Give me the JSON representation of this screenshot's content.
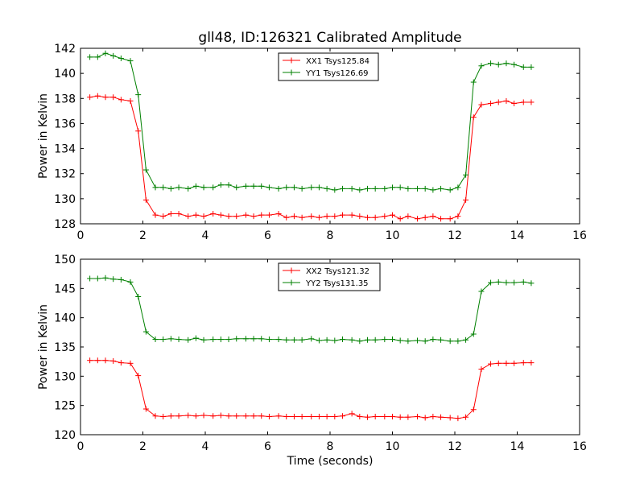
{
  "chart_data": [
    {
      "type": "line",
      "title": "gll48, ID:126321 Calibrated Amplitude",
      "xlabel": "",
      "ylabel": "Power in Kelvin",
      "xlim": [
        0,
        16
      ],
      "ylim": [
        128,
        142
      ],
      "xticks": [
        "0",
        "2",
        "4",
        "6",
        "8",
        "10",
        "12",
        "14",
        "16"
      ],
      "yticks": [
        "128",
        "130",
        "132",
        "134",
        "136",
        "138",
        "140",
        "142"
      ],
      "legend_position": "top-center",
      "x": [
        0.3,
        0.55,
        0.8,
        1.05,
        1.3,
        1.6,
        1.85,
        2.1,
        2.4,
        2.65,
        2.9,
        3.15,
        3.45,
        3.7,
        3.95,
        4.25,
        4.5,
        4.75,
        5.0,
        5.3,
        5.55,
        5.8,
        6.05,
        6.35,
        6.6,
        6.85,
        7.1,
        7.4,
        7.65,
        7.9,
        8.15,
        8.4,
        8.7,
        8.95,
        9.2,
        9.45,
        9.75,
        10.0,
        10.25,
        10.5,
        10.8,
        11.05,
        11.3,
        11.55,
        11.85,
        12.1,
        12.35,
        12.6,
        12.85,
        13.15,
        13.4,
        13.65,
        13.9,
        14.2,
        14.45
      ],
      "series": [
        {
          "name": "XX1 Tsys125.84",
          "color": "#ff0000",
          "values": [
            138.1,
            138.2,
            138.1,
            138.1,
            137.9,
            137.8,
            135.4,
            129.9,
            128.7,
            128.6,
            128.8,
            128.8,
            128.6,
            128.7,
            128.6,
            128.8,
            128.7,
            128.6,
            128.6,
            128.7,
            128.6,
            128.7,
            128.7,
            128.8,
            128.5,
            128.6,
            128.5,
            128.6,
            128.5,
            128.6,
            128.6,
            128.7,
            128.7,
            128.6,
            128.5,
            128.5,
            128.6,
            128.7,
            128.4,
            128.6,
            128.4,
            128.5,
            128.6,
            128.4,
            128.4,
            128.6,
            129.9,
            136.5,
            137.5,
            137.6,
            137.7,
            137.8,
            137.6,
            137.7,
            137.7
          ]
        },
        {
          "name": "YY1 Tsys126.69",
          "color": "#008000",
          "values": [
            141.3,
            141.3,
            141.6,
            141.4,
            141.2,
            141.0,
            138.3,
            132.3,
            130.9,
            130.9,
            130.8,
            130.9,
            130.8,
            131.0,
            130.9,
            130.9,
            131.1,
            131.1,
            130.9,
            131.0,
            131.0,
            131.0,
            130.9,
            130.8,
            130.9,
            130.9,
            130.8,
            130.9,
            130.9,
            130.8,
            130.7,
            130.8,
            130.8,
            130.7,
            130.8,
            130.8,
            130.8,
            130.9,
            130.9,
            130.8,
            130.8,
            130.8,
            130.7,
            130.8,
            130.7,
            130.9,
            131.9,
            139.3,
            140.6,
            140.8,
            140.7,
            140.8,
            140.7,
            140.5,
            140.5
          ]
        }
      ]
    },
    {
      "type": "line",
      "title": "",
      "xlabel": "Time (seconds)",
      "ylabel": "Power in Kelvin",
      "xlim": [
        0,
        16
      ],
      "ylim": [
        120,
        150
      ],
      "xticks": [
        "0",
        "2",
        "4",
        "6",
        "8",
        "10",
        "12",
        "14",
        "16"
      ],
      "yticks": [
        "120",
        "125",
        "130",
        "135",
        "140",
        "145",
        "150"
      ],
      "legend_position": "top-center",
      "x": [
        0.3,
        0.55,
        0.8,
        1.05,
        1.3,
        1.6,
        1.85,
        2.1,
        2.4,
        2.65,
        2.9,
        3.15,
        3.45,
        3.7,
        3.95,
        4.25,
        4.5,
        4.75,
        5.0,
        5.3,
        5.55,
        5.8,
        6.05,
        6.35,
        6.6,
        6.85,
        7.1,
        7.4,
        7.65,
        7.9,
        8.15,
        8.4,
        8.7,
        8.95,
        9.2,
        9.45,
        9.75,
        10.0,
        10.25,
        10.5,
        10.8,
        11.05,
        11.3,
        11.55,
        11.85,
        12.1,
        12.35,
        12.6,
        12.85,
        13.15,
        13.4,
        13.65,
        13.9,
        14.2,
        14.45
      ],
      "series": [
        {
          "name": "XX2 Tsys121.32",
          "color": "#ff0000",
          "values": [
            132.7,
            132.7,
            132.7,
            132.6,
            132.3,
            132.2,
            130.1,
            124.4,
            123.2,
            123.1,
            123.2,
            123.2,
            123.3,
            123.2,
            123.3,
            123.2,
            123.3,
            123.2,
            123.2,
            123.2,
            123.2,
            123.2,
            123.1,
            123.2,
            123.1,
            123.1,
            123.1,
            123.1,
            123.1,
            123.1,
            123.1,
            123.2,
            123.6,
            123.1,
            123.0,
            123.1,
            123.1,
            123.1,
            123.0,
            123.0,
            123.1,
            122.9,
            123.1,
            123.0,
            122.9,
            122.8,
            123.0,
            124.3,
            131.2,
            132.1,
            132.2,
            132.2,
            132.2,
            132.3,
            132.3
          ]
        },
        {
          "name": "YY2 Tsys131.35",
          "color": "#008000",
          "values": [
            146.7,
            146.7,
            146.8,
            146.6,
            146.5,
            146.1,
            143.6,
            137.6,
            136.3,
            136.3,
            136.4,
            136.3,
            136.2,
            136.5,
            136.2,
            136.3,
            136.3,
            136.3,
            136.4,
            136.4,
            136.4,
            136.4,
            136.3,
            136.3,
            136.2,
            136.2,
            136.2,
            136.4,
            136.1,
            136.2,
            136.1,
            136.3,
            136.2,
            136.0,
            136.2,
            136.2,
            136.3,
            136.3,
            136.1,
            136.0,
            136.1,
            136.0,
            136.3,
            136.2,
            136.0,
            136.0,
            136.2,
            137.2,
            144.5,
            146.0,
            146.1,
            146.0,
            146.0,
            146.1,
            145.9
          ]
        }
      ]
    }
  ]
}
